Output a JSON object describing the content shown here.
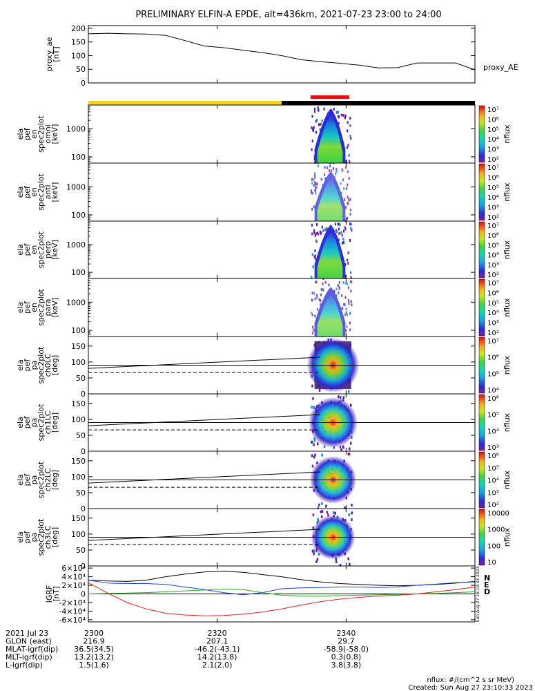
{
  "title": "PRELIMINARY ELFIN-A EPDE, alt=436km, 2021-07-23 23:00 to 24:00",
  "colors": {
    "axis": "#000000",
    "line": "#000000",
    "bar_yellow": "#f5d11b",
    "bar_black": "#000000",
    "bar_red": "#e01010",
    "grf_n": "#1f3fe6",
    "grf_e": "#22aa22",
    "grf_d": "#e02020",
    "grf_total": "#000000"
  },
  "status_bars": {
    "science_zones": [
      {
        "from": 23.0,
        "to": 23.5,
        "color": "bar_yellow"
      },
      {
        "from": 23.5,
        "to": 24.0,
        "color": "bar_black"
      }
    ],
    "highlight": {
      "from": 23.575,
      "to": 23.675,
      "color": "bar_red"
    }
  },
  "x_axis": {
    "start": 23.0,
    "end": 24.0,
    "ticks": [
      {
        "v": 23.0,
        "label": "2300"
      },
      {
        "v": 23.3333,
        "label": "2320"
      },
      {
        "v": 23.6667,
        "label": "2340"
      }
    ]
  },
  "panels": [
    {
      "kind": "line",
      "ylabel": [
        "proxy_ae",
        "[nT]"
      ],
      "yticks": [
        "0",
        "50",
        "100",
        "150",
        "200"
      ],
      "ytick_values": [
        0,
        50,
        100,
        150,
        200
      ],
      "ymin": 0,
      "ymax": 210,
      "legend": "proxy_AE"
    },
    {
      "kind": "spectro_energy",
      "ylabel": [
        "ela",
        "pef",
        "en",
        "spec2plot",
        "omni",
        "[keV]"
      ],
      "yticks": [
        "100",
        "1000"
      ],
      "ytick_values": [
        100,
        1000
      ],
      "ymin": 60,
      "ymax": 7000,
      "log": true,
      "intensity": 1.0,
      "cbar_ticks": [
        "10²",
        "10³",
        "10⁴",
        "10⁵",
        "10⁶",
        "10⁷"
      ]
    },
    {
      "kind": "spectro_energy",
      "ylabel": [
        "ela",
        "pef",
        "en",
        "spec2plot",
        "anti",
        "[keV]"
      ],
      "yticks": [
        "100",
        "1000"
      ],
      "ytick_values": [
        100,
        1000
      ],
      "ymin": 60,
      "ymax": 7000,
      "log": true,
      "intensity": 0.55,
      "cbar_ticks": [
        "10²",
        "10³",
        "10⁴",
        "10⁵",
        "10⁶",
        "10⁷"
      ]
    },
    {
      "kind": "spectro_energy",
      "ylabel": [
        "ela",
        "pef",
        "en",
        "spec2plot",
        "perp",
        "[keV]"
      ],
      "yticks": [
        "100",
        "1000"
      ],
      "ytick_values": [
        100,
        1000
      ],
      "ymin": 60,
      "ymax": 7000,
      "log": true,
      "intensity": 0.95,
      "cbar_ticks": [
        "10²",
        "10³",
        "10⁴",
        "10⁵",
        "10⁶",
        "10⁷"
      ]
    },
    {
      "kind": "spectro_energy",
      "ylabel": [
        "ela",
        "pef",
        "en",
        "spec2plot",
        "para",
        "[keV]"
      ],
      "yticks": [
        "100",
        "1000"
      ],
      "ytick_values": [
        100,
        1000
      ],
      "ymin": 60,
      "ymax": 7000,
      "log": true,
      "intensity": 0.6,
      "cbar_ticks": [
        "10²",
        "10³",
        "10⁴",
        "10⁵",
        "10⁶",
        "10⁷"
      ]
    },
    {
      "kind": "spectro_pitch",
      "ylabel": [
        "ela",
        "pef",
        "pa",
        "spec2plot",
        "ch0LC",
        "[deg]"
      ],
      "yticks": [
        "0",
        "50",
        "100",
        "150"
      ],
      "ytick_values": [
        0,
        50,
        100,
        150
      ],
      "ymin": 0,
      "ymax": 180,
      "intensity": 1.0,
      "cbar_ticks": [
        "10⁴",
        "10⁵",
        "10⁶",
        "10⁷"
      ]
    },
    {
      "kind": "spectro_pitch",
      "ylabel": [
        "ela",
        "pef",
        "pa",
        "spec2plot",
        "ch1LC",
        "[deg]"
      ],
      "yticks": [
        "0",
        "50",
        "100",
        "150"
      ],
      "ytick_values": [
        0,
        50,
        100,
        150
      ],
      "ymin": 0,
      "ymax": 180,
      "intensity": 0.8,
      "cbar_ticks": [
        "10³",
        "10⁴",
        "10⁵",
        "10⁶"
      ]
    },
    {
      "kind": "spectro_pitch",
      "ylabel": [
        "ela",
        "pef",
        "pa",
        "spec2plot",
        "ch2LC",
        "[deg]"
      ],
      "yticks": [
        "0",
        "50",
        "100",
        "150"
      ],
      "ytick_values": [
        0,
        50,
        100,
        150
      ],
      "ymin": 0,
      "ymax": 180,
      "intensity": 0.65,
      "cbar_ticks": [
        "10²",
        "10³",
        "10⁴",
        "10⁵",
        "10⁶"
      ]
    },
    {
      "kind": "spectro_pitch",
      "ylabel": [
        "ela",
        "pef",
        "pa",
        "spec2plot",
        "ch3LC",
        "[deg]"
      ],
      "yticks": [
        "0",
        "50",
        "100",
        "150"
      ],
      "ytick_values": [
        0,
        50,
        100,
        150
      ],
      "ymin": 0,
      "ymax": 180,
      "intensity": 0.5,
      "cbar_ticks": [
        "10",
        "100",
        "1000",
        "10000"
      ]
    },
    {
      "kind": "grf",
      "ylabel": [
        "IGRF",
        "[nT]"
      ],
      "yticks": [
        "-6×10⁴",
        "-4×10⁴",
        "-2×10⁴",
        "0",
        "2×10⁴",
        "4×10⁴",
        "6×10⁴"
      ],
      "ytick_values": [
        -60000,
        -40000,
        -20000,
        0,
        20000,
        40000,
        60000
      ],
      "ymin": -65000,
      "ymax": 65000,
      "legend": [
        "N",
        "E",
        "D"
      ],
      "side_stamp": "Sun Aug 27 16:10:33 2023"
    }
  ],
  "colorbar_label": "nflux",
  "pa_line_y": 90,
  "chart_data": {
    "type": "line",
    "title": "PRELIMINARY ELFIN-A EPDE, alt=436km, 2021-07-23 23:00 to 24:00",
    "xlabel": "",
    "proxy_ae": {
      "name": "proxy_AE",
      "x": [
        23.0,
        23.05,
        23.1,
        23.15,
        23.2,
        23.25,
        23.3,
        23.35,
        23.4,
        23.45,
        23.5,
        23.55,
        23.6,
        23.65,
        23.7,
        23.75,
        23.8,
        23.85,
        23.9,
        23.95,
        23.98,
        24.0
      ],
      "y": [
        180,
        182,
        180,
        179,
        174,
        155,
        135,
        129,
        120,
        111,
        100,
        85,
        78,
        72,
        65,
        55,
        56,
        73,
        73,
        73,
        58,
        48
      ],
      "ylim": [
        0,
        210
      ]
    },
    "loss_cone_upper": {
      "x": [
        23.0,
        23.6
      ],
      "y": [
        80,
        115
      ]
    },
    "loss_cone_lower": {
      "x": [
        23.0,
        23.6
      ],
      "y": [
        67,
        67
      ]
    },
    "igrf": {
      "x": [
        23.0,
        23.05,
        23.1,
        23.15,
        23.2,
        23.25,
        23.3,
        23.35,
        23.4,
        23.45,
        23.5,
        23.55,
        23.6,
        23.65,
        23.7,
        23.75,
        23.8,
        23.85,
        23.9,
        23.95,
        24.0
      ],
      "N": [
        32000,
        25000,
        24000,
        24000,
        22000,
        16000,
        10000,
        3000,
        -2000,
        3000,
        12000,
        14000,
        15000,
        16000,
        16000,
        15000,
        16000,
        20000,
        23000,
        26000,
        28000
      ],
      "E": [
        0,
        1000,
        2000,
        3000,
        5000,
        7000,
        9000,
        11000,
        10000,
        3000,
        -3000,
        -5000,
        -5000,
        -4000,
        -3000,
        -2000,
        -1000,
        0,
        1000,
        3000,
        5000
      ],
      "D": [
        26000,
        2000,
        -20000,
        -35000,
        -45000,
        -49000,
        -51000,
        -50000,
        -47000,
        -42000,
        -35000,
        -26000,
        -18000,
        -12000,
        -8000,
        -5000,
        -3000,
        0,
        5000,
        10000,
        16000
      ],
      "total": [
        32000,
        30000,
        29000,
        32000,
        40000,
        46000,
        51000,
        53000,
        50000,
        45000,
        40000,
        33000,
        28000,
        24000,
        22000,
        20000,
        19000,
        20000,
        22000,
        25000,
        29000
      ],
      "ylim": [
        -65000,
        65000
      ]
    }
  },
  "footer": {
    "rows": [
      {
        "label": "2021 Jul 23",
        "values": [
          "2300",
          "2320",
          "2340"
        ]
      },
      {
        "label": "GLON (east)",
        "values": [
          "216.9",
          "207.1",
          "29.7"
        ]
      },
      {
        "label": "MLAT-igrf(dip)",
        "values": [
          "36.5(34.5)",
          "-46.2(-43.1)",
          "-58.9(-58.0)"
        ]
      },
      {
        "label": "MLT-igrf(dip)",
        "values": [
          "13.2(13.2)",
          "14.2(13.8)",
          "0.3(0.8)"
        ]
      },
      {
        "label": "L-igrf(dip)",
        "values": [
          "1.5(1.6)",
          "2.1(2.0)",
          "3.8(3.8)"
        ]
      }
    ],
    "units_note": "nflux: #/(cm^2 s sr MeV)",
    "created": "Created: Sun Aug 27 23:10:33 2023"
  }
}
